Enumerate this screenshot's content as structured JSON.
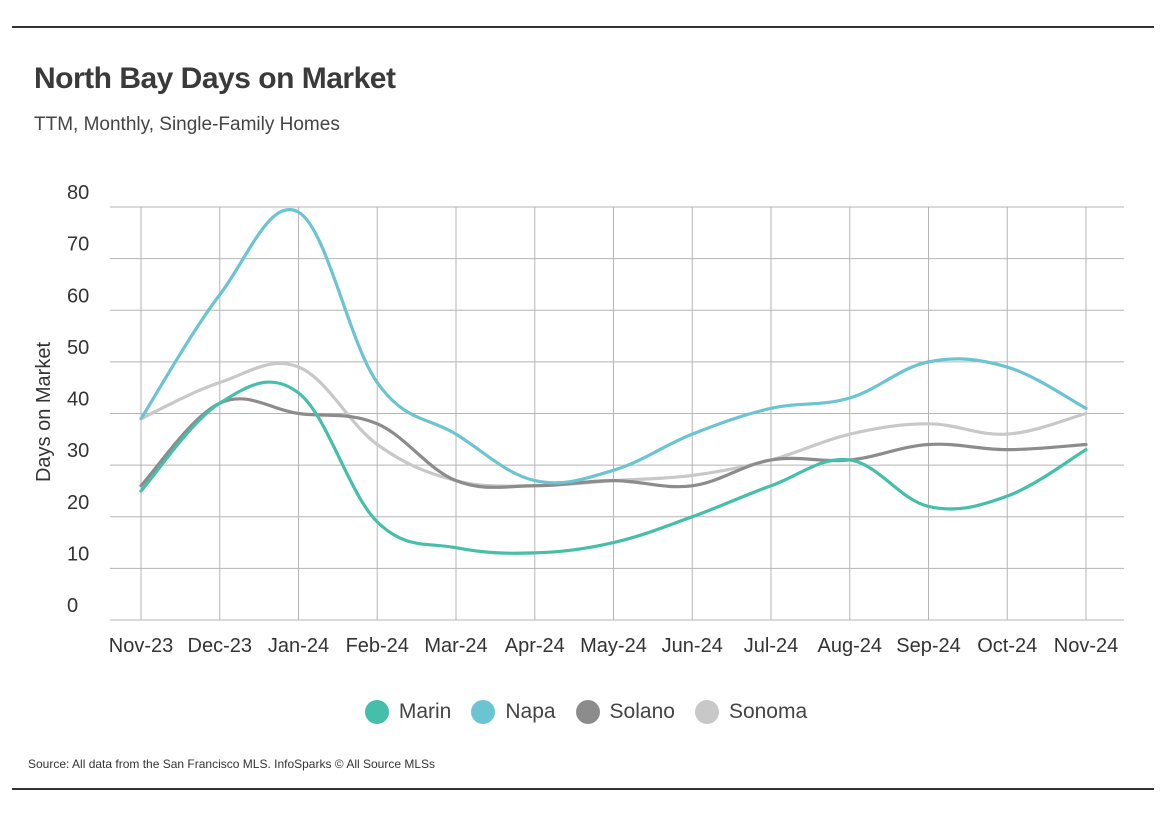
{
  "header": {
    "title": "North Bay Days on Market",
    "subtitle": "TTM, Monthly, Single-Family Homes"
  },
  "footer": {
    "source": "Source:  All data from the San Francisco MLS. InfoSparks © All Source MLSs"
  },
  "chart_data": {
    "type": "line",
    "title": "North Bay Days on Market",
    "subtitle": "TTM, Monthly, Single-Family Homes",
    "xlabel": "",
    "ylabel": "Days on Market",
    "ylim": [
      0,
      80
    ],
    "yticks": [
      0,
      10,
      20,
      30,
      40,
      50,
      60,
      70,
      80
    ],
    "grid": true,
    "legend_position": "bottom",
    "categories": [
      "Nov-23",
      "Dec-23",
      "Jan-24",
      "Feb-24",
      "Mar-24",
      "Apr-24",
      "May-24",
      "Jun-24",
      "Jul-24",
      "Aug-24",
      "Sep-24",
      "Oct-24",
      "Nov-24"
    ],
    "series": [
      {
        "name": "Marin",
        "color": "#45bfa9",
        "values": [
          25,
          42,
          44,
          19,
          14,
          13,
          15,
          20,
          26,
          31,
          22,
          24,
          33
        ]
      },
      {
        "name": "Napa",
        "color": "#6ac4d1",
        "values": [
          39,
          63,
          79,
          46,
          36,
          27,
          29,
          36,
          41,
          43,
          50,
          49,
          41
        ]
      },
      {
        "name": "Solano",
        "color": "#8c8c8c",
        "values": [
          26,
          42,
          40,
          38,
          27,
          26,
          27,
          26,
          31,
          31,
          34,
          33,
          34
        ]
      },
      {
        "name": "Sonoma",
        "color": "#c8c8c8",
        "values": [
          39,
          46,
          49,
          34,
          27,
          26,
          27,
          28,
          31,
          36,
          38,
          36,
          40
        ]
      }
    ]
  }
}
